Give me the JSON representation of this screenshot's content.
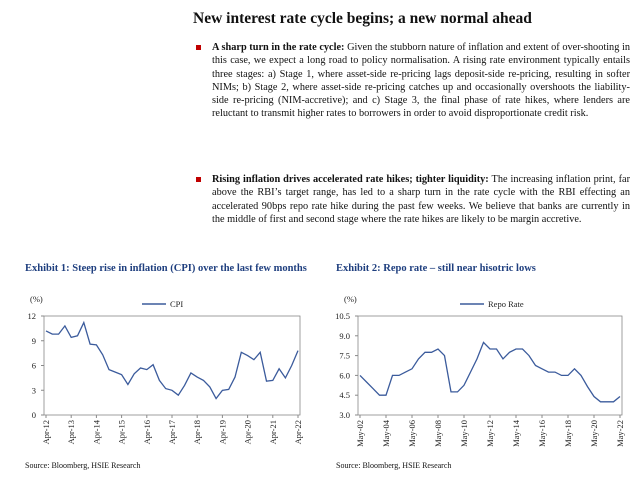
{
  "header": {
    "title": "New interest rate cycle begins; a new normal ahead"
  },
  "bullets": [
    {
      "lead": "A sharp turn in the rate cycle:",
      "text": "Given the stubborn nature of inflation and extent of over-shooting in this case, we expect a long road to policy normalisation. A rising rate environment typically entails three stages: a) Stage 1, where asset-side re-pricing lags deposit-side re-pricing, resulting in softer NIMs; b) Stage 2, where asset-side re-pricing catches up and occasionally overshoots the liability-side re-pricing (NIM-accretive); and c) Stage 3, the final phase of rate hikes, where lenders are reluctant to transmit higher rates to borrowers in order to avoid disproportionate credit risk."
    },
    {
      "lead": "Rising inflation drives accelerated rate hikes; tighter liquidity:",
      "text": "The increasing inflation print, far above the RBI’s target range, has led to a sharp turn in the rate cycle with the RBI effecting an accelerated 90bps repo rate hike during the past few weeks. We believe that banks are currently in the middle of first and second stage where the rate hikes are likely to be margin accretive."
    }
  ],
  "chart_data": [
    {
      "type": "line",
      "title": "Exhibit 1: Steep rise in inflation (CPI) over the last few months",
      "source": "Source: Bloomberg, HSIE Research",
      "ylabel": "(%)",
      "legend": "top",
      "grid": false,
      "categories": [
        "Apr-12",
        null,
        null,
        null,
        "Apr-13",
        null,
        null,
        null,
        "Apr-14",
        null,
        null,
        null,
        "Apr-15",
        null,
        null,
        null,
        "Apr-16",
        null,
        null,
        null,
        "Apr-17",
        null,
        null,
        null,
        "Apr-18",
        null,
        null,
        null,
        "Apr-19",
        null,
        null,
        null,
        "Apr-20",
        null,
        null,
        null,
        "Apr-21",
        null,
        null,
        null,
        "Apr-22"
      ],
      "series": [
        {
          "name": "CPI",
          "color": "#3b5b9c",
          "values": [
            10.2,
            9.8,
            9.8,
            10.8,
            9.4,
            9.6,
            11.2,
            8.6,
            8.5,
            7.3,
            5.5,
            5.2,
            4.9,
            3.7,
            5.0,
            5.7,
            5.5,
            6.1,
            4.2,
            3.2,
            3.0,
            2.4,
            3.6,
            5.1,
            4.6,
            4.2,
            3.4,
            2.0,
            3.0,
            3.1,
            4.6,
            7.6,
            7.2,
            6.7,
            7.6,
            4.1,
            4.2,
            5.6,
            4.5,
            6.0,
            7.8
          ]
        }
      ],
      "ylim": [
        0,
        12
      ],
      "yticks": [
        0,
        3,
        6,
        9,
        12
      ]
    },
    {
      "type": "line",
      "title": "Exhibit 2: Repo rate – still near hisotric lows",
      "source": "Source: Bloomberg, HSIE Research",
      "ylabel": "(%)",
      "legend": "top",
      "grid": false,
      "categories": [
        "May-02",
        null,
        null,
        null,
        "May-04",
        null,
        null,
        null,
        "May-06",
        null,
        null,
        null,
        "May-08",
        null,
        null,
        null,
        "May-10",
        null,
        null,
        null,
        "May-12",
        null,
        null,
        null,
        "May-14",
        null,
        null,
        null,
        "May-16",
        null,
        null,
        null,
        "May-18",
        null,
        null,
        null,
        "May-20",
        null,
        null,
        null,
        "May-22"
      ],
      "series": [
        {
          "name": "Repo Rate",
          "color": "#3b5b9c",
          "values": [
            6.0,
            5.5,
            5.0,
            4.5,
            4.5,
            6.0,
            6.0,
            6.25,
            6.5,
            7.25,
            7.75,
            7.75,
            8.0,
            7.5,
            4.75,
            4.75,
            5.25,
            6.25,
            7.25,
            8.5,
            8.0,
            8.0,
            7.25,
            7.75,
            8.0,
            8.0,
            7.5,
            6.75,
            6.5,
            6.25,
            6.25,
            6.0,
            6.0,
            6.5,
            6.0,
            5.15,
            4.4,
            4.0,
            4.0,
            4.0,
            4.4
          ]
        }
      ],
      "ylim": [
        3,
        10.5
      ],
      "yticks": [
        {
          "value": 3,
          "label": "3.0"
        },
        4.5,
        {
          "value": 6,
          "label": "6.0"
        },
        7.5,
        {
          "value": 9,
          "label": "9.0"
        },
        10.5
      ]
    }
  ]
}
